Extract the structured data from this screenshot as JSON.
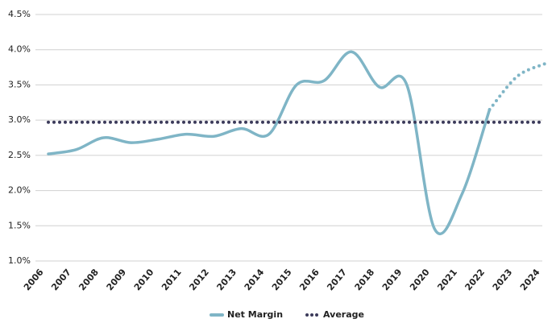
{
  "chart_data": {
    "type": "line",
    "categories": [
      "2006",
      "2007",
      "2008",
      "2009",
      "2010",
      "2011",
      "2012",
      "2013",
      "2014",
      "2015",
      "2016",
      "2017",
      "2018",
      "2019",
      "2020",
      "2021",
      "2022",
      "2023",
      "2024"
    ],
    "series": [
      {
        "name": "Net Margin",
        "color": "#7fb5c6",
        "style": "solid",
        "dotted_from": 16,
        "values": [
          2.52,
          2.58,
          2.75,
          2.68,
          2.73,
          2.8,
          2.77,
          2.88,
          2.8,
          3.5,
          3.56,
          3.97,
          3.47,
          3.5,
          1.46,
          1.95,
          3.15,
          3.62,
          3.8
        ]
      },
      {
        "name": "Average",
        "color": "#3b3a5a",
        "style": "dotted",
        "values": [
          2.97,
          2.97,
          2.97,
          2.97,
          2.97,
          2.97,
          2.97,
          2.97,
          2.97,
          2.97,
          2.97,
          2.97,
          2.97,
          2.97,
          2.97,
          2.97,
          2.97,
          2.97,
          2.97
        ]
      }
    ],
    "ylim": [
      1.0,
      4.5
    ],
    "yticks": [
      {
        "value": 1.0,
        "label": "1.0%"
      },
      {
        "value": 1.5,
        "label": "1.5%"
      },
      {
        "value": 2.0,
        "label": "2.0%"
      },
      {
        "value": 2.5,
        "label": "2.5%"
      },
      {
        "value": 3.0,
        "label": "3.0%"
      },
      {
        "value": 3.5,
        "label": "3.5%"
      },
      {
        "value": 4.0,
        "label": "4.0%"
      },
      {
        "value": 4.5,
        "label": "4.5%"
      }
    ],
    "grid": true,
    "legend": "bottom"
  }
}
